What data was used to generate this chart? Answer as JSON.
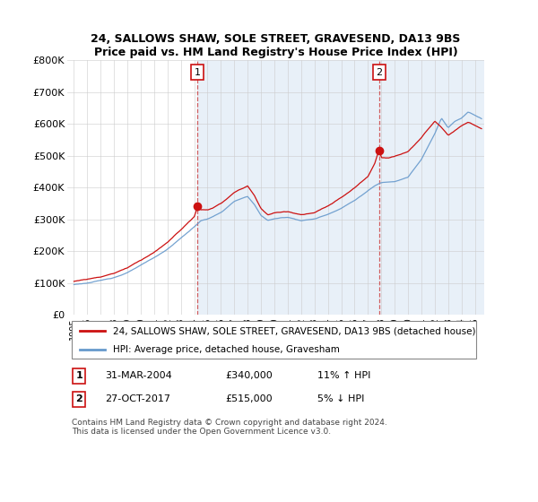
{
  "title": "24, SALLOWS SHAW, SOLE STREET, GRAVESEND, DA13 9BS",
  "subtitle": "Price paid vs. HM Land Registry's House Price Index (HPI)",
  "line_color_hpi": "#6699cc",
  "line_color_price": "#cc1111",
  "vline_color": "#cc4444",
  "bg_shade_color": "#e8f0f8",
  "grid_color": "#cccccc",
  "plot_bg": "#ffffff",
  "marker1_year": 2004.25,
  "marker1_price": 340000,
  "marker2_year": 2017.83,
  "marker2_price": 515000,
  "legend_label_price": "24, SALLOWS SHAW, SOLE STREET, GRAVESEND, DA13 9BS (detached house)",
  "legend_label_hpi": "HPI: Average price, detached house, Gravesham",
  "ann1_date": "31-MAR-2004",
  "ann1_price": "£340,000",
  "ann1_hpi": "11% ↑ HPI",
  "ann2_date": "27-OCT-2017",
  "ann2_price": "£515,000",
  "ann2_hpi": "5% ↓ HPI",
  "footnote": "Contains HM Land Registry data © Crown copyright and database right 2024.\nThis data is licensed under the Open Government Licence v3.0.",
  "ylim": [
    0,
    800000
  ],
  "xlim_start": 1994.5,
  "xlim_end": 2025.7
}
